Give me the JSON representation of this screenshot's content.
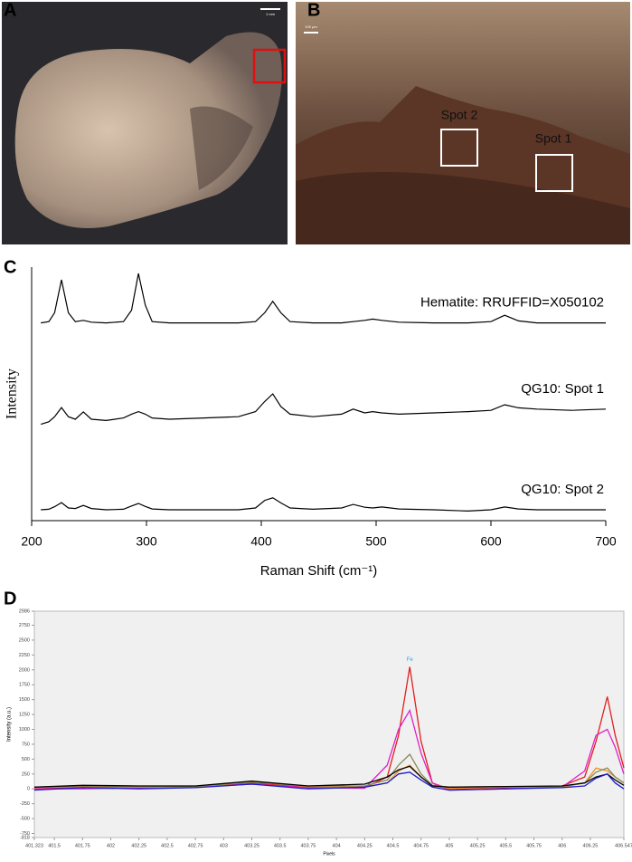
{
  "panel_labels": [
    "A",
    "B",
    "C",
    "D"
  ],
  "photos": {
    "A": {
      "scale_text": "1 mm"
    },
    "B": {
      "scale_text": "100 μm",
      "spots": [
        "Spot 2",
        "Spot 1"
      ]
    }
  },
  "chart_data": [
    {
      "type": "line",
      "xlabel": "Raman Shift (cm⁻¹)",
      "ylabel": "Intensity",
      "xlim": [
        200,
        700
      ],
      "xticks": [
        200,
        300,
        400,
        500,
        600,
        700
      ],
      "ylim": [
        0,
        100
      ],
      "x": [
        208,
        215,
        220,
        226,
        232,
        238,
        245,
        252,
        265,
        280,
        287,
        293,
        299,
        305,
        320,
        350,
        380,
        395,
        403,
        410,
        417,
        425,
        445,
        470,
        480,
        490,
        497,
        505,
        520,
        550,
        580,
        600,
        612,
        624,
        640,
        670,
        700
      ],
      "series": [
        {
          "name": "Hematite: RRUFFID=X050102",
          "color": "#000000",
          "values": [
            78,
            78.5,
            82,
            95,
            82,
            78.5,
            79,
            78.3,
            78,
            78.5,
            83,
            97.5,
            85,
            78.5,
            78,
            78,
            78,
            78.5,
            82,
            86.5,
            82,
            78.5,
            78,
            78,
            78.5,
            79,
            79.5,
            79,
            78.3,
            78,
            78,
            78.5,
            81,
            78.8,
            78,
            78,
            78
          ]
        },
        {
          "name": "QG10: Spot 1",
          "color": "#000000",
          "values": [
            38,
            39,
            41,
            44.6,
            41,
            40,
            42.9,
            40,
            39.5,
            40.5,
            42,
            43,
            42,
            40.5,
            40,
            40.5,
            41,
            43,
            47,
            50,
            45,
            42,
            41,
            42,
            44,
            42.5,
            43,
            42.5,
            42,
            42.5,
            43,
            43.5,
            45.7,
            44.5,
            44,
            43.5,
            44
          ]
        },
        {
          "name": "QG10: Spot 2",
          "color": "#000000",
          "values": [
            4.3,
            4.5,
            5.5,
            7.1,
            5,
            4.8,
            6,
            4.8,
            4.3,
            4.5,
            5.8,
            6.8,
            5.6,
            4.6,
            4.3,
            4.3,
            4.3,
            5,
            8,
            9,
            7,
            5,
            4.5,
            5,
            6.4,
            5.3,
            5,
            5.4,
            4.6,
            4.3,
            3.8,
            4.3,
            5.4,
            4.6,
            4.3,
            4.3,
            4.3
          ]
        }
      ]
    },
    {
      "type": "line",
      "xlabel": "Pixels",
      "ylabel": "Intensity (a.u.)",
      "annotation": "Fe",
      "xlim": [
        401.323,
        406.547
      ],
      "xticks": [
        401.323,
        401.5,
        401.75,
        402,
        402.25,
        402.5,
        402.75,
        403,
        403.25,
        403.5,
        403.75,
        404,
        404.25,
        404.5,
        404.75,
        405,
        405.25,
        405.5,
        405.75,
        406,
        406.25,
        406.547
      ],
      "ylim": [
        -818,
        2986
      ],
      "yticks": [
        -818,
        -750,
        -500,
        -250,
        0,
        250,
        500,
        750,
        1000,
        1250,
        1500,
        1750,
        2000,
        2250,
        2500,
        2750,
        2986
      ],
      "x": [
        401.323,
        401.75,
        402.25,
        402.75,
        403.25,
        403.75,
        404.25,
        404.45,
        404.55,
        404.65,
        404.75,
        404.85,
        405.0,
        405.5,
        406.0,
        406.2,
        406.3,
        406.4,
        406.47,
        406.547
      ],
      "series": [
        {
          "color": "#e0201e",
          "values": [
            0,
            30,
            20,
            40,
            100,
            30,
            20,
            200,
            900,
            2050,
            800,
            100,
            0,
            20,
            50,
            200,
            800,
            1550,
            900,
            350
          ]
        },
        {
          "color": "#e020c8",
          "values": [
            0,
            0,
            20,
            30,
            80,
            20,
            10,
            400,
            1000,
            1320,
            600,
            100,
            -20,
            0,
            30,
            300,
            900,
            1000,
            700,
            250
          ]
        },
        {
          "color": "#f0901e",
          "values": [
            20,
            40,
            30,
            30,
            120,
            40,
            30,
            100,
            300,
            400,
            200,
            50,
            10,
            30,
            30,
            100,
            350,
            300,
            200,
            100
          ]
        },
        {
          "color": "#8a8a5a",
          "values": [
            30,
            50,
            40,
            40,
            110,
            50,
            50,
            150,
            400,
            580,
            250,
            60,
            30,
            40,
            40,
            100,
            280,
            350,
            200,
            100
          ]
        },
        {
          "color": "#000000",
          "values": [
            30,
            60,
            50,
            50,
            130,
            50,
            80,
            200,
            320,
            380,
            200,
            50,
            30,
            40,
            50,
            100,
            200,
            250,
            150,
            60
          ]
        },
        {
          "color": "#1a1acc",
          "values": [
            -20,
            20,
            0,
            20,
            80,
            0,
            30,
            100,
            250,
            280,
            150,
            30,
            -20,
            0,
            20,
            50,
            180,
            250,
            100,
            0
          ]
        }
      ]
    }
  ]
}
